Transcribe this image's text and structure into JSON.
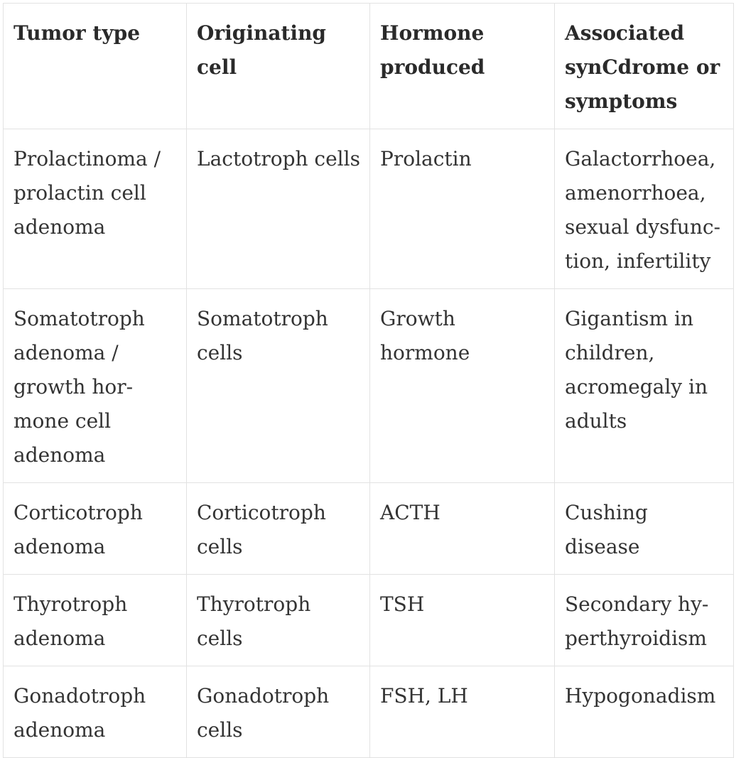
{
  "table": {
    "headers": [
      "Tumor type",
      "Originating cell",
      "Hormone produced",
      "Associated syn­Cdrome or symptoms"
    ],
    "rows": [
      {
        "tumor_type": "Prolactinoma / prolactin cell adenoma",
        "originating_cell": "Lactotroph cells",
        "hormone": "Prolactin",
        "symptoms": "Galactorrhoea, amenorrhoea, sexual dysfunc­tion, infertility"
      },
      {
        "tumor_type": "Somatotroph adenoma / growth hor­mone cell adenoma",
        "originating_cell": "Somatotroph cells",
        "hormone": "Growth hormone",
        "symptoms": "Gigantism in children, acromegaly in adults"
      },
      {
        "tumor_type": "Corticotroph adenoma",
        "originating_cell": "Corticotroph cells",
        "hormone": "ACTH",
        "symptoms": "Cushing disease"
      },
      {
        "tumor_type": "Thyrotroph adenoma",
        "originating_cell": "Thyrotroph cells",
        "hormone": "TSH",
        "symptoms": "Secondary hy­perthyroidism"
      },
      {
        "tumor_type": "Gonadotroph adenoma",
        "originating_cell": "Gonadotroph cells",
        "hormone": "FSH, LH",
        "symptoms": "Hypogonadism"
      }
    ]
  }
}
